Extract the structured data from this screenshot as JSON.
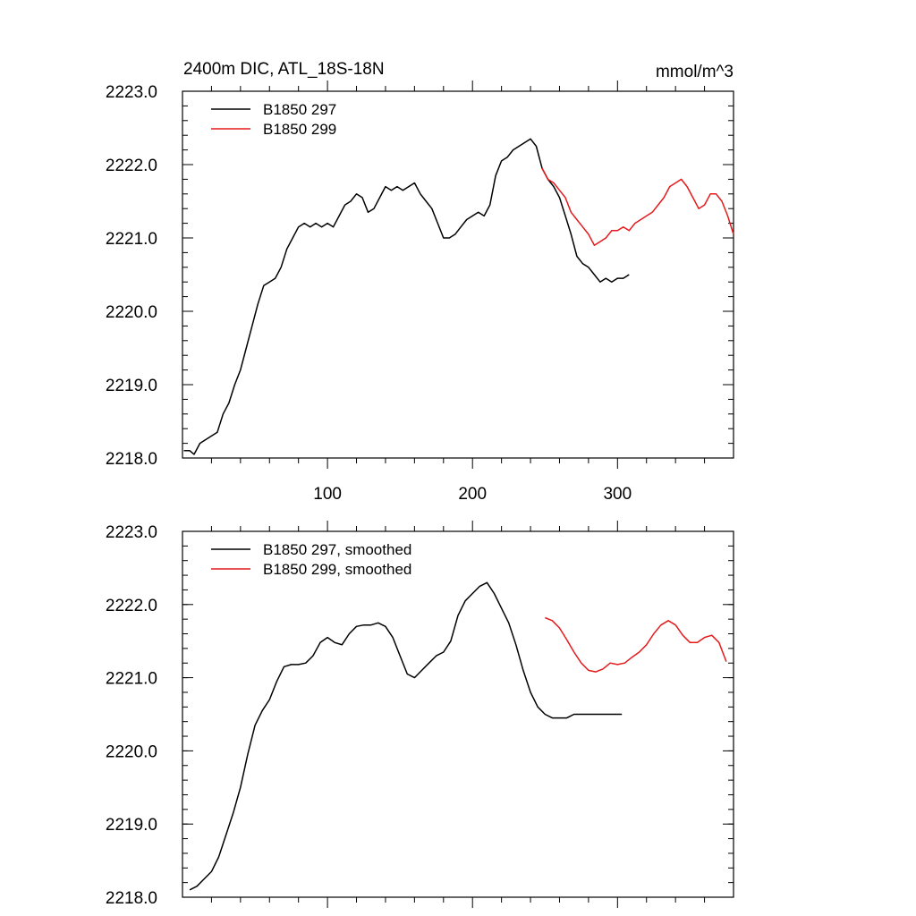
{
  "chart_data": [
    {
      "type": "line",
      "title": "2400m DIC, ATL_18S-18N",
      "units": "mmol/m^3",
      "xlim": [
        0,
        380
      ],
      "ylim": [
        2218.0,
        2223.0
      ],
      "xticks": [
        100,
        200,
        300
      ],
      "xtick_labels": [
        "100",
        "200",
        "300"
      ],
      "yticks": [
        2218.0,
        2219.0,
        2220.0,
        2221.0,
        2222.0,
        2223.0
      ],
      "ytick_labels": [
        "2218.0",
        "2219.0",
        "2220.0",
        "2221.0",
        "2222.0",
        "2223.0"
      ],
      "legend_position": "top-left",
      "series": [
        {
          "name": "B1850 297",
          "color": "#000000",
          "x": [
            1,
            5,
            8,
            12,
            16,
            20,
            24,
            28,
            32,
            36,
            40,
            44,
            48,
            52,
            56,
            60,
            64,
            68,
            72,
            76,
            80,
            84,
            88,
            92,
            96,
            100,
            104,
            108,
            112,
            116,
            120,
            124,
            128,
            132,
            136,
            140,
            144,
            148,
            152,
            156,
            160,
            164,
            168,
            172,
            176,
            180,
            184,
            188,
            192,
            196,
            200,
            204,
            208,
            212,
            216,
            220,
            224,
            228,
            232,
            236,
            240,
            244,
            248,
            252,
            256,
            260,
            264,
            268,
            272,
            276,
            280,
            284,
            288,
            292,
            296,
            300,
            304,
            308
          ],
          "values": [
            2218.1,
            2218.1,
            2218.05,
            2218.2,
            2218.25,
            2218.3,
            2218.35,
            2218.6,
            2218.75,
            2219.0,
            2219.2,
            2219.5,
            2219.8,
            2220.1,
            2220.35,
            2220.4,
            2220.45,
            2220.6,
            2220.85,
            2221.0,
            2221.15,
            2221.2,
            2221.15,
            2221.2,
            2221.15,
            2221.2,
            2221.15,
            2221.3,
            2221.45,
            2221.5,
            2221.6,
            2221.55,
            2221.35,
            2221.4,
            2221.55,
            2221.7,
            2221.65,
            2221.7,
            2221.65,
            2221.7,
            2221.75,
            2221.6,
            2221.5,
            2221.4,
            2221.2,
            2221.0,
            2221.0,
            2221.05,
            2221.15,
            2221.25,
            2221.3,
            2221.35,
            2221.3,
            2221.45,
            2221.85,
            2222.05,
            2222.1,
            2222.2,
            2222.25,
            2222.3,
            2222.35,
            2222.25,
            2221.95,
            2221.8,
            2221.7,
            2221.55,
            2221.3,
            2221.05,
            2220.75,
            2220.65,
            2220.6,
            2220.5,
            2220.4,
            2220.45,
            2220.4,
            2220.45,
            2220.45,
            2220.5
          ]
        },
        {
          "name": "B1850 299",
          "color": "#e41a1c",
          "x": [
            248,
            252,
            256,
            260,
            264,
            268,
            272,
            276,
            280,
            284,
            288,
            292,
            296,
            300,
            304,
            308,
            312,
            316,
            320,
            324,
            328,
            332,
            336,
            340,
            344,
            348,
            352,
            356,
            360,
            364,
            368,
            372,
            376,
            380
          ],
          "values": [
            2221.95,
            2221.8,
            2221.75,
            2221.65,
            2221.55,
            2221.35,
            2221.25,
            2221.15,
            2221.05,
            2220.9,
            2220.95,
            2221.0,
            2221.1,
            2221.1,
            2221.15,
            2221.1,
            2221.2,
            2221.25,
            2221.3,
            2221.35,
            2221.45,
            2221.55,
            2221.7,
            2221.75,
            2221.8,
            2221.7,
            2221.55,
            2221.4,
            2221.45,
            2221.6,
            2221.6,
            2221.5,
            2221.3,
            2221.05
          ]
        }
      ]
    },
    {
      "type": "line",
      "ylim": [
        2218.0,
        2223.0
      ],
      "xlim": [
        0,
        380
      ],
      "yticks": [
        2218.0,
        2219.0,
        2220.0,
        2221.0,
        2222.0,
        2223.0
      ],
      "ytick_labels": [
        "2218.0",
        "2219.0",
        "2220.0",
        "2221.0",
        "2222.0",
        "2223.0"
      ],
      "xticks": [
        100,
        200,
        300
      ],
      "legend_position": "top-left",
      "series": [
        {
          "name": "B1850 297, smoothed",
          "color": "#000000",
          "x": [
            5,
            10,
            15,
            20,
            25,
            30,
            35,
            40,
            45,
            50,
            55,
            60,
            65,
            70,
            75,
            80,
            85,
            90,
            95,
            100,
            105,
            110,
            115,
            120,
            125,
            130,
            135,
            140,
            145,
            150,
            155,
            160,
            165,
            170,
            175,
            180,
            185,
            190,
            195,
            200,
            205,
            210,
            215,
            220,
            225,
            230,
            235,
            240,
            245,
            250,
            255,
            260,
            265,
            270,
            275,
            280,
            285,
            290,
            295,
            300,
            303
          ],
          "values": [
            2218.1,
            2218.15,
            2218.25,
            2218.35,
            2218.55,
            2218.85,
            2219.15,
            2219.5,
            2219.95,
            2220.35,
            2220.55,
            2220.7,
            2220.95,
            2221.15,
            2221.18,
            2221.18,
            2221.2,
            2221.3,
            2221.48,
            2221.55,
            2221.48,
            2221.45,
            2221.6,
            2221.7,
            2221.72,
            2221.72,
            2221.75,
            2221.7,
            2221.55,
            2221.3,
            2221.05,
            2221.0,
            2221.1,
            2221.2,
            2221.3,
            2221.35,
            2221.5,
            2221.85,
            2222.05,
            2222.15,
            2222.25,
            2222.3,
            2222.15,
            2221.95,
            2221.75,
            2221.45,
            2221.1,
            2220.8,
            2220.6,
            2220.5,
            2220.45,
            2220.45,
            2220.45,
            2220.5,
            2220.5,
            2220.5,
            2220.5,
            2220.5,
            2220.5,
            2220.5,
            2220.5
          ]
        },
        {
          "name": "B1850 299, smoothed",
          "color": "#e41a1c",
          "x": [
            250,
            255,
            260,
            265,
            270,
            275,
            280,
            285,
            290,
            295,
            300,
            305,
            310,
            315,
            320,
            325,
            330,
            335,
            340,
            345,
            350,
            355,
            360,
            365,
            370,
            375
          ],
          "values": [
            2221.82,
            2221.78,
            2221.68,
            2221.52,
            2221.35,
            2221.2,
            2221.1,
            2221.08,
            2221.12,
            2221.2,
            2221.18,
            2221.2,
            2221.28,
            2221.35,
            2221.45,
            2221.6,
            2221.72,
            2221.78,
            2221.72,
            2221.58,
            2221.48,
            2221.48,
            2221.55,
            2221.58,
            2221.48,
            2221.22
          ]
        }
      ]
    }
  ]
}
